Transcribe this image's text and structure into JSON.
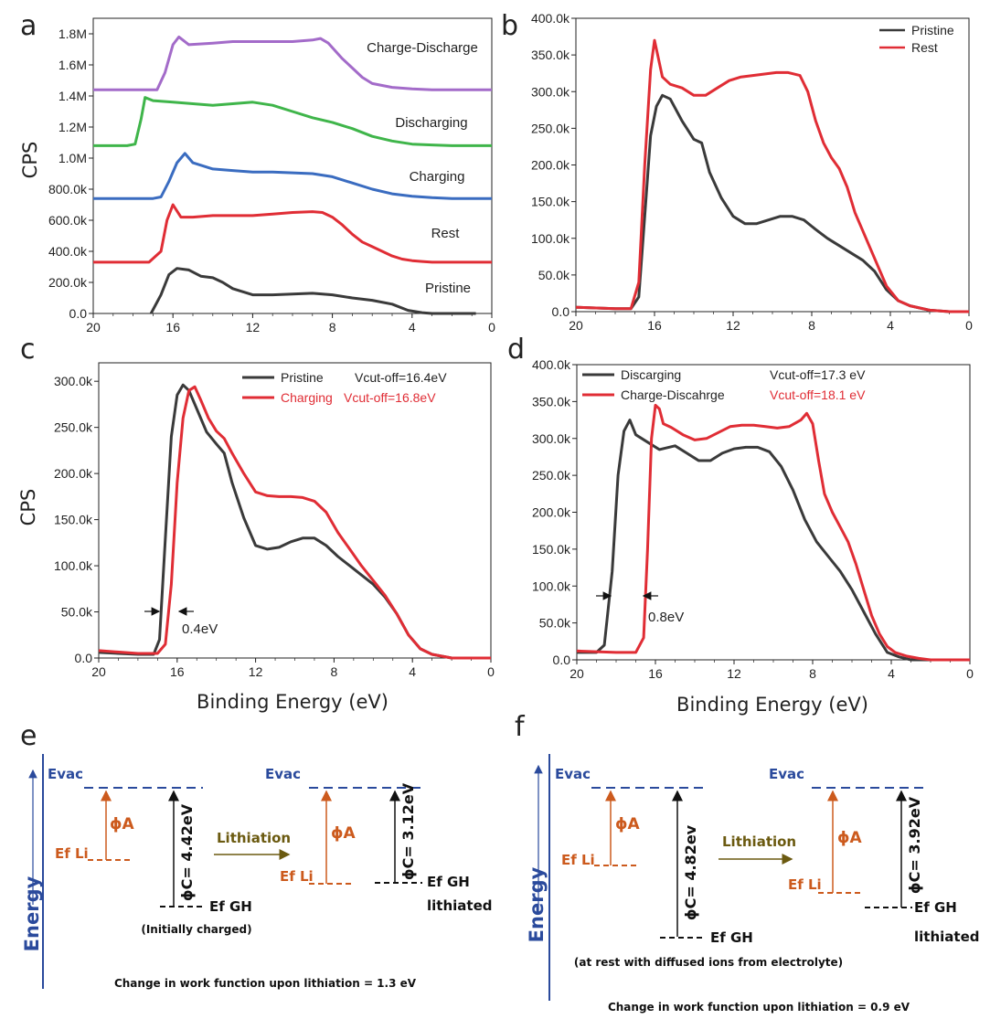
{
  "colors": {
    "pristine": "#3a3a3a",
    "rest": "#e02d35",
    "charging": "#3a6cc0",
    "discharging": "#3fb54a",
    "charge_discharge": "#a36bc9",
    "level": "#2a4a9c",
    "li": "#cc5a1d",
    "lith": "#6b5a10",
    "dark": "#111111"
  },
  "chart_data": [
    {
      "panel": "a",
      "type": "line",
      "xlim": [
        20,
        0
      ],
      "ylim": [
        0,
        1.9
      ],
      "xticks": [
        20,
        16,
        12,
        8,
        4,
        0
      ],
      "xtick_labels": [
        "20",
        "16",
        "12",
        "8",
        "4",
        "0"
      ],
      "yticks": [
        0,
        0.2,
        0.4,
        0.6,
        0.8,
        1.0,
        1.2,
        1.4,
        1.6,
        1.8
      ],
      "ytick_labels": [
        "0.0",
        "200.0k",
        "400.0k",
        "600.0k",
        "800.0k",
        "1.0M",
        "1.2M",
        "1.4M",
        "1.6M",
        "1.8M"
      ],
      "xlabel": "",
      "ylabel": "CPS",
      "series": [
        {
          "name": "Pristine",
          "color": "#3a3a3a",
          "x": [
            17.1,
            16.6,
            16.2,
            15.8,
            15.2,
            14.6,
            14.0,
            13.5,
            13.0,
            12.0,
            11.0,
            10.0,
            9.0,
            8.0,
            7.0,
            6.0,
            5.0,
            4.2,
            3.5,
            3.0,
            2.0,
            0.8
          ],
          "y": [
            0,
            0.12,
            0.25,
            0.29,
            0.28,
            0.24,
            0.23,
            0.2,
            0.16,
            0.12,
            0.12,
            0.125,
            0.13,
            0.12,
            0.1,
            0.085,
            0.06,
            0.02,
            0.005,
            0,
            0,
            0
          ]
        },
        {
          "name": "Rest",
          "color": "#e02d35",
          "x": [
            20,
            17.2,
            16.6,
            16.3,
            16.0,
            15.6,
            15.0,
            14.0,
            13.0,
            12.0,
            11.0,
            10.0,
            9.0,
            8.5,
            8.0,
            7.5,
            7.0,
            6.5,
            6.0,
            5.5,
            5.0,
            4.5,
            4.0,
            3.5,
            3.0,
            2.0,
            0
          ],
          "y": [
            0.33,
            0.33,
            0.4,
            0.6,
            0.7,
            0.62,
            0.62,
            0.63,
            0.63,
            0.63,
            0.64,
            0.65,
            0.655,
            0.65,
            0.62,
            0.57,
            0.51,
            0.46,
            0.43,
            0.4,
            0.37,
            0.35,
            0.34,
            0.335,
            0.33,
            0.33,
            0.33
          ]
        },
        {
          "name": "Charging",
          "color": "#3a6cc0",
          "x": [
            20,
            17.0,
            16.6,
            16.2,
            15.8,
            15.4,
            15.0,
            14.0,
            13.0,
            12.0,
            11.0,
            10.0,
            9.0,
            8.0,
            7.0,
            6.0,
            5.0,
            4.0,
            3.0,
            2.0,
            0
          ],
          "y": [
            0.74,
            0.74,
            0.75,
            0.85,
            0.97,
            1.03,
            0.97,
            0.93,
            0.92,
            0.91,
            0.91,
            0.905,
            0.9,
            0.88,
            0.84,
            0.8,
            0.77,
            0.755,
            0.745,
            0.74,
            0.74
          ]
        },
        {
          "name": "Discharging",
          "color": "#3fb54a",
          "x": [
            20,
            18.3,
            17.9,
            17.6,
            17.4,
            17.0,
            16.0,
            15.0,
            14.0,
            13.0,
            12.0,
            11.0,
            10.0,
            9.0,
            8.0,
            7.0,
            6.0,
            5.0,
            4.0,
            3.0,
            2.0,
            0
          ],
          "y": [
            1.08,
            1.08,
            1.09,
            1.25,
            1.39,
            1.37,
            1.36,
            1.35,
            1.34,
            1.35,
            1.36,
            1.34,
            1.3,
            1.26,
            1.23,
            1.19,
            1.14,
            1.11,
            1.09,
            1.085,
            1.08,
            1.08
          ]
        },
        {
          "name": "Charge-Discharge",
          "color": "#a36bc9",
          "x": [
            20,
            16.8,
            16.4,
            16.0,
            15.7,
            15.2,
            14.0,
            13.0,
            12.0,
            11.0,
            10.0,
            9.0,
            8.6,
            8.2,
            7.5,
            7.0,
            6.5,
            6.0,
            5.0,
            4.0,
            3.0,
            2.0,
            0
          ],
          "y": [
            1.44,
            1.44,
            1.55,
            1.73,
            1.78,
            1.73,
            1.74,
            1.75,
            1.75,
            1.75,
            1.75,
            1.76,
            1.77,
            1.74,
            1.64,
            1.58,
            1.52,
            1.48,
            1.455,
            1.445,
            1.44,
            1.44,
            1.44
          ]
        }
      ],
      "labels": [
        {
          "text": "Charge-Discharge",
          "x": 6.4,
          "y": 1.67
        },
        {
          "text": "Discharging",
          "x": 6.4,
          "y": 1.32
        },
        {
          "text": "Charging",
          "x": 6.4,
          "y": 0.94
        },
        {
          "text": "Rest",
          "x": 6.1,
          "y": 0.5
        },
        {
          "text": "Pristine",
          "x": 6.1,
          "y": 0.16
        }
      ]
    },
    {
      "panel": "b",
      "type": "line",
      "xlim": [
        20,
        0
      ],
      "ylim": [
        0,
        400
      ],
      "xticks": [
        20,
        16,
        12,
        8,
        4,
        0
      ],
      "xtick_labels": [
        "20",
        "16",
        "12",
        "8",
        "4",
        "0"
      ],
      "yticks": [
        0,
        50,
        100,
        150,
        200,
        250,
        300,
        350,
        400
      ],
      "ytick_labels": [
        "0.0",
        "50.0k",
        "100.0k",
        "150.0k",
        "200.0k",
        "250.0k",
        "300.0k",
        "350.0k",
        "400.0k"
      ],
      "xlabel": "",
      "ylabel": "",
      "legend": [
        "Pristine",
        "Rest"
      ],
      "series": [
        {
          "name": "Pristine",
          "color": "#3a3a3a",
          "x": [
            20,
            18,
            17.2,
            16.8,
            16.5,
            16.2,
            15.9,
            15.6,
            15.2,
            14.6,
            14.0,
            13.6,
            13.2,
            12.6,
            12.0,
            11.4,
            10.8,
            10.2,
            9.6,
            9.0,
            8.4,
            7.8,
            7.2,
            6.6,
            6.0,
            5.4,
            4.8,
            4.2,
            3.6,
            3.0,
            2.0,
            1.0,
            0
          ],
          "y": [
            6,
            4,
            4,
            20,
            130,
            240,
            280,
            295,
            290,
            260,
            235,
            230,
            190,
            155,
            130,
            120,
            120,
            125,
            130,
            130,
            125,
            112,
            100,
            90,
            80,
            70,
            55,
            30,
            15,
            8,
            2,
            0,
            0
          ]
        },
        {
          "name": "Rest",
          "color": "#e02d35",
          "x": [
            20,
            18,
            17.2,
            16.8,
            16.5,
            16.2,
            16.0,
            15.8,
            15.6,
            15.2,
            14.6,
            14.0,
            13.4,
            12.8,
            12.2,
            11.6,
            11.0,
            10.4,
            9.8,
            9.2,
            8.6,
            8.2,
            7.8,
            7.4,
            7.0,
            6.6,
            6.2,
            5.8,
            5.4,
            5.0,
            4.6,
            4.2,
            3.6,
            3.0,
            2.0,
            1.0,
            0
          ],
          "y": [
            6,
            4,
            4,
            40,
            200,
            330,
            370,
            345,
            320,
            310,
            305,
            295,
            295,
            305,
            315,
            320,
            322,
            324,
            326,
            326,
            322,
            300,
            260,
            230,
            210,
            195,
            170,
            135,
            110,
            85,
            60,
            35,
            15,
            8,
            2,
            0,
            0
          ]
        }
      ]
    },
    {
      "panel": "c",
      "type": "line",
      "xlim": [
        20,
        0
      ],
      "ylim": [
        0,
        320
      ],
      "xticks": [
        20,
        16,
        12,
        8,
        4,
        0
      ],
      "xtick_labels": [
        "20",
        "16",
        "12",
        "8",
        "4",
        "0"
      ],
      "yticks": [
        0,
        50,
        100,
        150,
        200,
        250,
        300
      ],
      "ytick_labels": [
        "0.0",
        "50.0k",
        "100.0k",
        "150.0k",
        "200.0k",
        "250.0k",
        "300.0k"
      ],
      "xlabel": "Binding Energy (eV)",
      "ylabel": "CPS",
      "legend": [
        "Pristine",
        "Charging"
      ],
      "legend_notes": [
        "Vcut-off=16.4eV",
        "Vcut-off=16.8eV"
      ],
      "annotation": "0.4eV",
      "series": [
        {
          "name": "Pristine",
          "color": "#3a3a3a",
          "x": [
            20,
            18,
            17.2,
            16.9,
            16.6,
            16.3,
            16.0,
            15.7,
            15.4,
            15.0,
            14.5,
            14.0,
            13.6,
            13.2,
            12.6,
            12.0,
            11.4,
            10.8,
            10.2,
            9.6,
            9.0,
            8.4,
            7.8,
            7.2,
            6.6,
            6.0,
            5.4,
            4.8,
            4.2,
            3.6,
            3.0,
            2.0,
            1.0,
            0
          ],
          "y": [
            6,
            4,
            4,
            20,
            130,
            240,
            285,
            296,
            290,
            270,
            245,
            232,
            222,
            190,
            152,
            122,
            118,
            120,
            126,
            130,
            130,
            122,
            110,
            100,
            90,
            80,
            66,
            48,
            25,
            10,
            4,
            0,
            0,
            0
          ]
        },
        {
          "name": "Charging",
          "color": "#e02d35",
          "x": [
            20,
            18,
            17.0,
            16.6,
            16.3,
            16.0,
            15.7,
            15.4,
            15.1,
            14.8,
            14.4,
            14.0,
            13.6,
            13.2,
            12.6,
            12.0,
            11.4,
            10.8,
            10.2,
            9.6,
            9.0,
            8.4,
            7.8,
            7.2,
            6.6,
            6.0,
            5.4,
            4.8,
            4.2,
            3.6,
            3.0,
            2.0,
            1.0,
            0
          ],
          "y": [
            8,
            5,
            5,
            15,
            80,
            190,
            260,
            290,
            294,
            280,
            260,
            246,
            238,
            222,
            200,
            180,
            176,
            175,
            175,
            174,
            170,
            158,
            136,
            118,
            100,
            84,
            68,
            48,
            25,
            10,
            4,
            0,
            0,
            0
          ]
        }
      ]
    },
    {
      "panel": "d",
      "type": "line",
      "xlim": [
        20,
        0
      ],
      "ylim": [
        0,
        400
      ],
      "xticks": [
        20,
        16,
        12,
        8,
        4,
        0
      ],
      "xtick_labels": [
        "20",
        "16",
        "12",
        "8",
        "4",
        "0"
      ],
      "yticks": [
        0,
        50,
        100,
        150,
        200,
        250,
        300,
        350,
        400
      ],
      "ytick_labels": [
        "0.0",
        "50.0k",
        "100.0k",
        "150.0k",
        "200.0k",
        "250.0k",
        "300.0k",
        "350.0k",
        "400.0k"
      ],
      "xlabel": "Binding Energy (eV)",
      "ylabel": "",
      "legend": [
        "Discarging",
        "Charge-Discahrge"
      ],
      "legend_notes": [
        "Vcut-off=17.3 eV",
        "Vcut-off=18.1 eV"
      ],
      "annotation": "0.8eV",
      "series": [
        {
          "name": "Discarging",
          "color": "#3a3a3a",
          "x": [
            20,
            19,
            18.6,
            18.2,
            17.9,
            17.6,
            17.3,
            17.0,
            16.4,
            15.8,
            15.0,
            14.4,
            13.8,
            13.2,
            12.6,
            12.0,
            11.4,
            10.8,
            10.2,
            9.6,
            9.0,
            8.4,
            7.8,
            7.2,
            6.6,
            6.0,
            5.4,
            4.8,
            4.2,
            3.6,
            3.0,
            2.0,
            1.0,
            0
          ],
          "y": [
            10,
            10,
            20,
            120,
            250,
            310,
            325,
            305,
            295,
            285,
            290,
            280,
            270,
            270,
            280,
            286,
            288,
            288,
            282,
            262,
            230,
            190,
            160,
            140,
            120,
            95,
            65,
            35,
            10,
            4,
            0,
            0,
            0,
            0
          ]
        },
        {
          "name": "Charge-Discahrge",
          "color": "#e02d35",
          "x": [
            20,
            18,
            17.0,
            16.6,
            16.4,
            16.2,
            16.0,
            15.8,
            15.6,
            15.2,
            14.6,
            14.0,
            13.4,
            12.8,
            12.2,
            11.6,
            11.0,
            10.4,
            9.8,
            9.2,
            8.6,
            8.3,
            8.0,
            7.7,
            7.4,
            7.0,
            6.6,
            6.2,
            5.8,
            5.4,
            5.0,
            4.6,
            4.2,
            3.8,
            3.2,
            2.6,
            2.0,
            1.0,
            0
          ],
          "y": [
            12,
            10,
            10,
            30,
            150,
            300,
            345,
            340,
            320,
            315,
            305,
            298,
            300,
            308,
            316,
            318,
            318,
            316,
            314,
            316,
            325,
            334,
            320,
            270,
            225,
            200,
            180,
            160,
            130,
            95,
            60,
            35,
            18,
            10,
            5,
            2,
            0,
            0,
            0
          ]
        }
      ]
    }
  ],
  "panels": {
    "a": "a",
    "b": "b",
    "c": "c",
    "d": "d",
    "e": "e",
    "f": "f"
  },
  "axes": {
    "cps": "CPS",
    "binding_energy": "Binding Energy (eV)"
  },
  "legend_b": {
    "pristine": "Pristine",
    "rest": "Rest"
  },
  "legend_c": {
    "pristine": "Pristine",
    "charging": "Charging",
    "v1": "Vcut-off=16.4eV",
    "v2": "Vcut-off=16.8eV",
    "shift": "0.4eV"
  },
  "legend_d": {
    "discharging": "Discarging",
    "chdis": "Charge-Discahrge",
    "v1": "Vcut-off=17.3 eV",
    "v2": "Vcut-off=18.1 eV",
    "shift": "0.8eV"
  },
  "diagram_e": {
    "energy": "Energy",
    "evac1": "Evac",
    "evac2": "Evac",
    "phiA1": "ϕA",
    "phiA2": "ϕA",
    "efli1": "Ef Li",
    "efli2": "Ef Li",
    "phiC1": "ϕC= 4.42eV",
    "phiC2": "ϕC= 3.12eV",
    "lithiation": "Lithiation",
    "efgh1": "Ef GH",
    "efgh2": "Ef GH",
    "lithiated": "lithiated",
    "note": "(Initially charged)",
    "caption": "Change in work function upon lithiation = 1.3 eV"
  },
  "diagram_f": {
    "energy": "Energy",
    "evac1": "Evac",
    "evac2": "Evac",
    "phiA1": "ϕA",
    "phiA2": "ϕA",
    "efli1": "Ef Li",
    "efli2": "Ef Li",
    "phiC1": "ϕC= 4.82ev",
    "phiC2": "ϕC= 3.92eV",
    "lithiation": "Lithiation",
    "efgh1": "Ef GH",
    "efgh2": "Ef GH",
    "lithiated": "lithiated",
    "note": "(at rest with diffused ions from electrolyte)",
    "caption": "Change in work function upon lithiation = 0.9 eV"
  }
}
